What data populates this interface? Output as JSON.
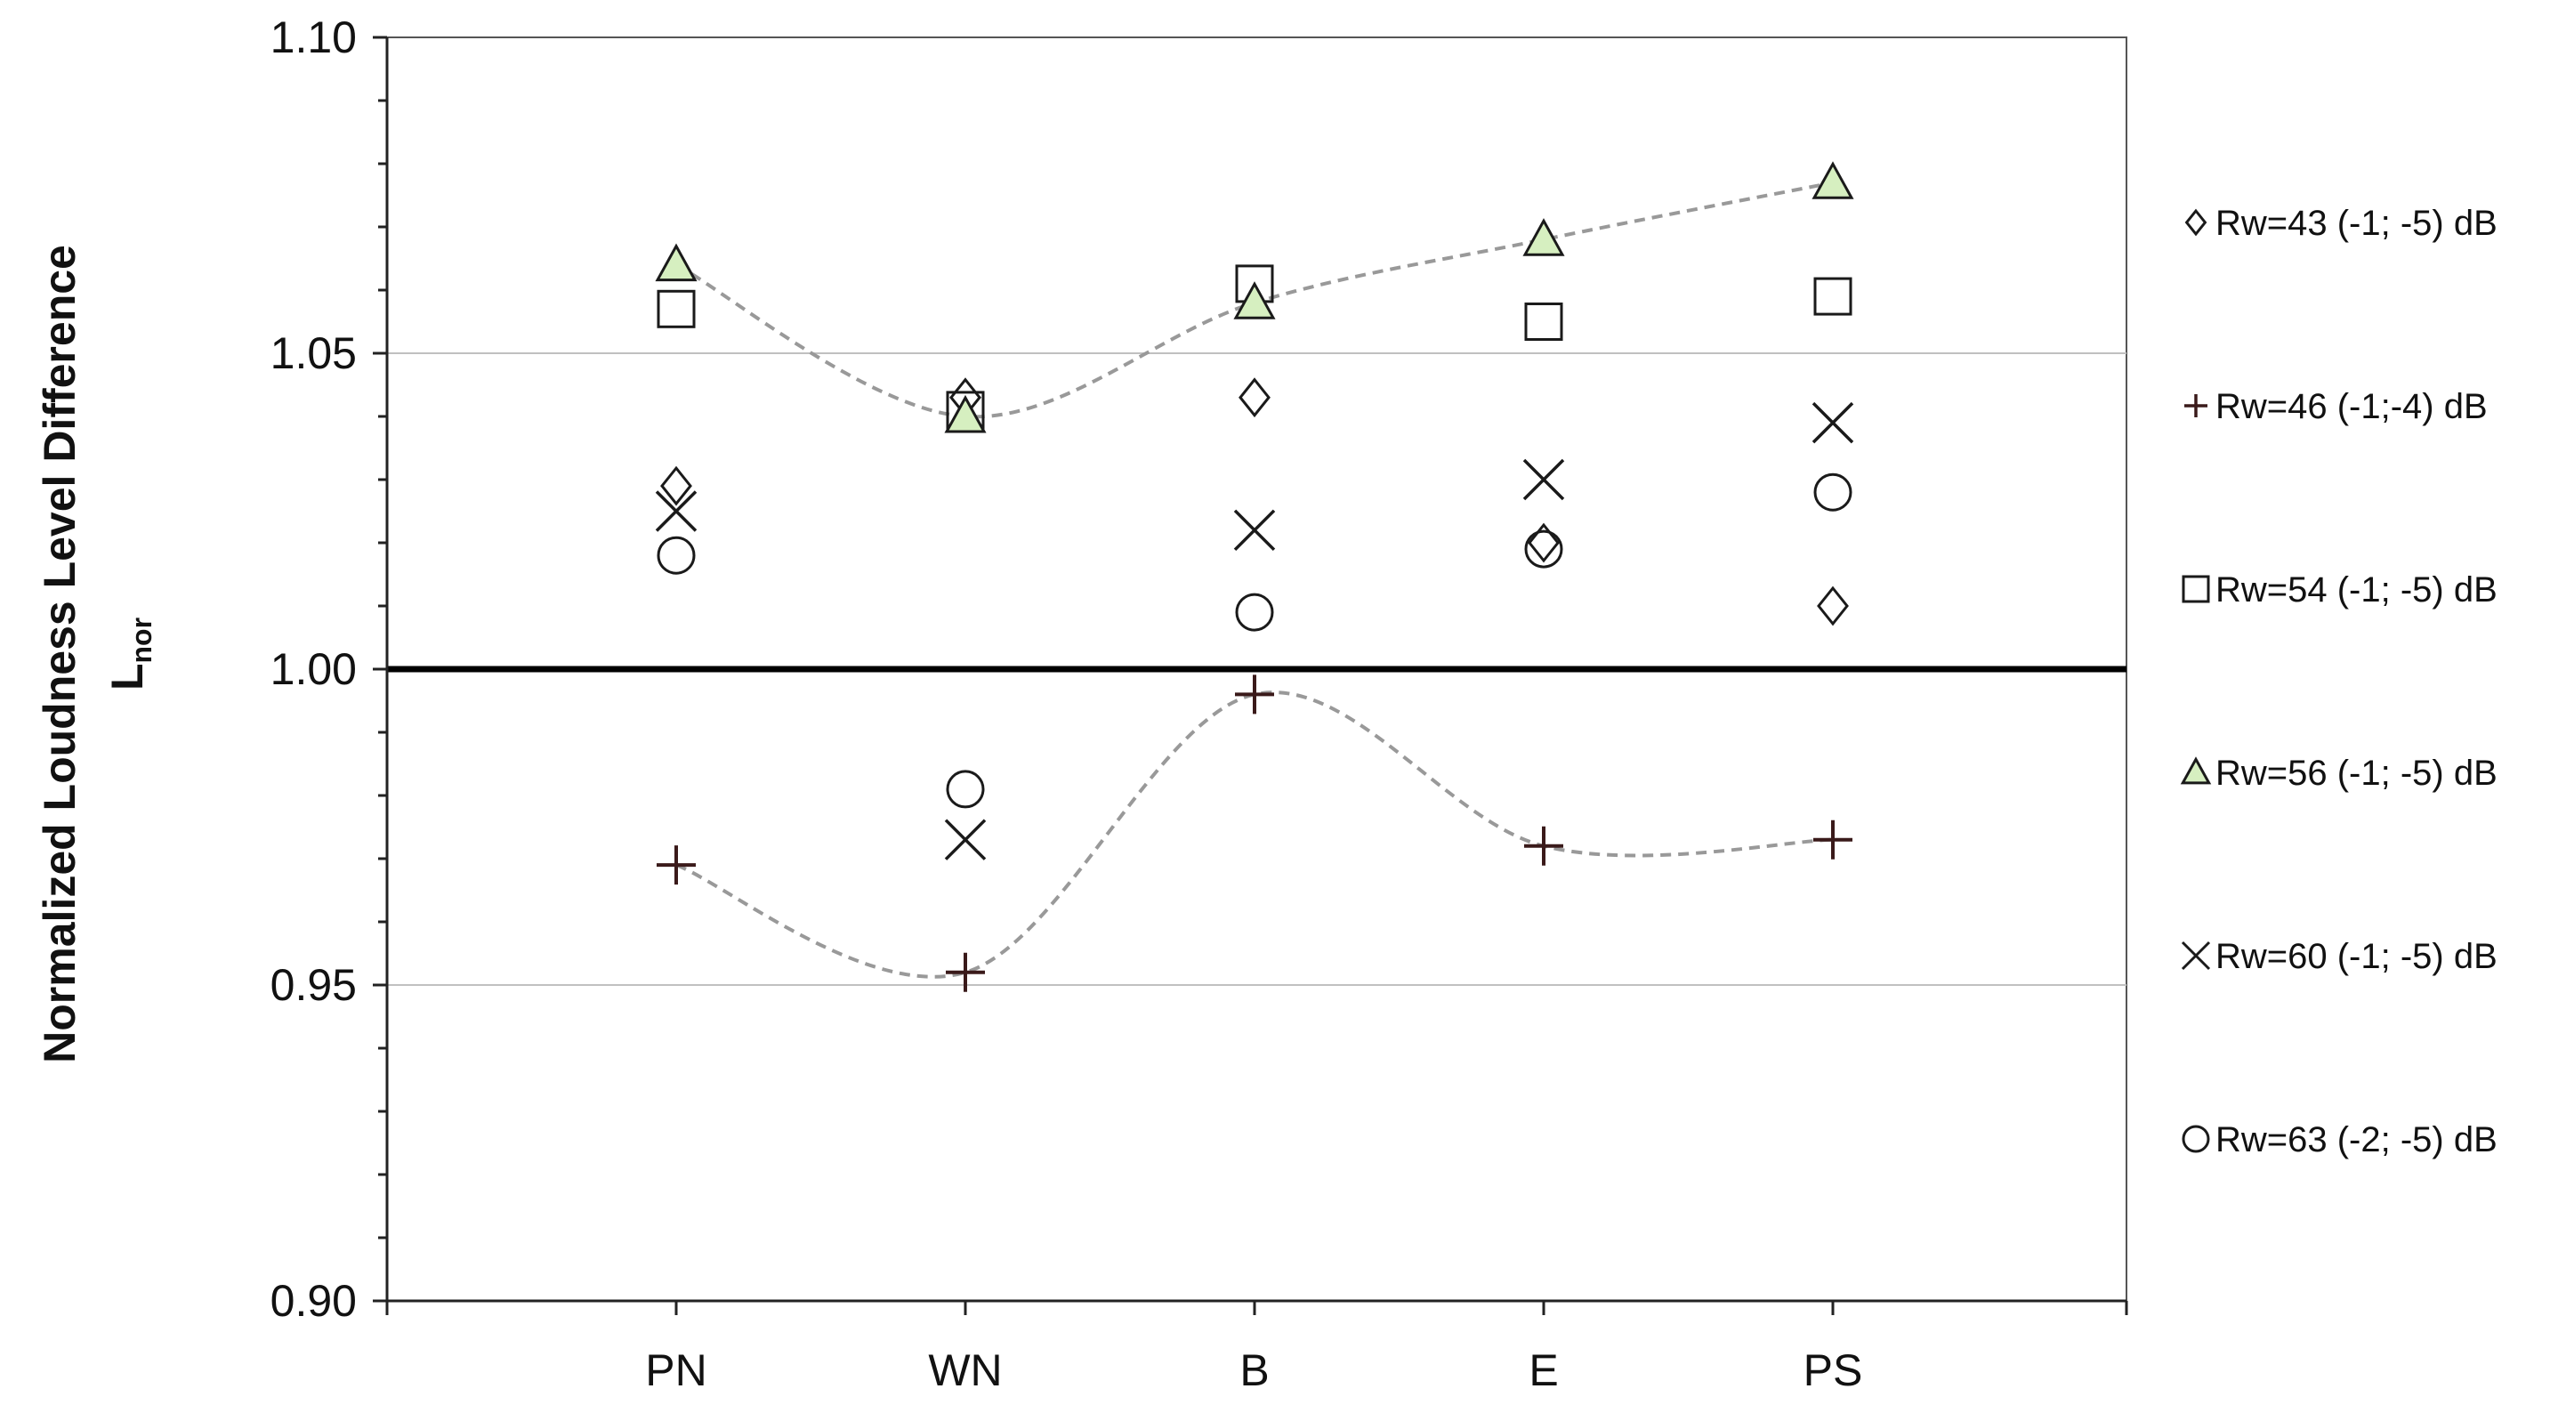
{
  "chart_data": {
    "type": "scatter",
    "title": "",
    "xlabel": "",
    "ylabel": "Normalized Loudness Level Difference",
    "ylabel_line2": "L",
    "ylabel_subscript": "nor",
    "categories": [
      "PN",
      "WN",
      "B",
      "E",
      "PS"
    ],
    "ylim": [
      0.9,
      1.1
    ],
    "yticks": [
      "0.90",
      "0.95",
      "1.00",
      "1.05",
      "1.10"
    ],
    "reference_line": 1.0,
    "gridlines": [
      0.95,
      1.05
    ],
    "legend_position": "right",
    "series": [
      {
        "name": "Rw=43 (-1; -5) dB",
        "marker": "diamond",
        "values": [
          1.029,
          1.043,
          1.043,
          1.02,
          1.01
        ],
        "trend": false
      },
      {
        "name": "Rw=46 (-1;-4) dB",
        "marker": "plus",
        "values": [
          0.969,
          0.952,
          0.996,
          0.972,
          0.973
        ],
        "trend": true
      },
      {
        "name": "Rw=54 (-1; -5) dB",
        "marker": "square",
        "values": [
          1.057,
          1.041,
          1.061,
          1.055,
          1.059
        ],
        "trend": false
      },
      {
        "name": "Rw=56 (-1; -5) dB",
        "marker": "triangle",
        "values": [
          1.064,
          1.04,
          1.058,
          1.068,
          1.077
        ],
        "trend": true
      },
      {
        "name": "Rw=60 (-1; -5) dB",
        "marker": "cross",
        "values": [
          1.025,
          0.973,
          1.022,
          1.03,
          1.039
        ],
        "trend": false
      },
      {
        "name": "Rw=63 (-2; -5) dB",
        "marker": "circle",
        "values": [
          1.018,
          0.981,
          1.009,
          1.019,
          1.028
        ],
        "trend": false
      }
    ],
    "colors": {
      "marker_stroke": "#1a1a1a",
      "triangle_fill": "#d6efc0",
      "plus_stroke": "#3a1a1a",
      "trend_line": "#999999",
      "gridline": "#c0c0c0",
      "reference_line": "#000000"
    }
  }
}
